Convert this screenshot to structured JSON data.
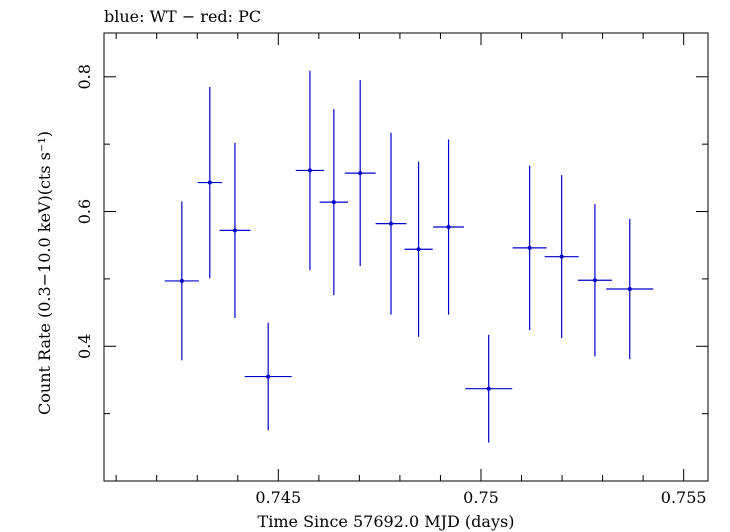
{
  "chart_data": {
    "type": "scatter",
    "title": "blue: WT − red: PC",
    "xlabel": "Time Since 57692.0 MJD (days)",
    "ylabel": "Count Rate (0.3−10.0 keV)(cts s⁻¹)",
    "xlim": [
      0.7407,
      0.7556
    ],
    "ylim": [
      0.2,
      0.865
    ],
    "xticks": [
      0.745,
      0.75,
      0.755
    ],
    "xtick_labels": [
      "0.745",
      "0.75",
      "0.755"
    ],
    "yticks": [
      0.4,
      0.6,
      0.8
    ],
    "ytick_labels": [
      "0.4",
      "0.6",
      "0.8"
    ],
    "series": [
      {
        "name": "WT",
        "color": "#0000cc",
        "points": [
          {
            "x": 0.74262,
            "y": 0.497,
            "xerr": 0.00042,
            "yerr": 0.118
          },
          {
            "x": 0.74331,
            "y": 0.643,
            "xerr": 0.0003,
            "yerr": 0.142
          },
          {
            "x": 0.74393,
            "y": 0.572,
            "xerr": 0.00038,
            "yerr": 0.13
          },
          {
            "x": 0.74475,
            "y": 0.355,
            "xerr": 0.00058,
            "yerr": 0.08
          },
          {
            "x": 0.74578,
            "y": 0.661,
            "xerr": 0.00035,
            "yerr": 0.148
          },
          {
            "x": 0.74637,
            "y": 0.614,
            "xerr": 0.00035,
            "yerr": 0.138
          },
          {
            "x": 0.74702,
            "y": 0.657,
            "xerr": 0.00038,
            "yerr": 0.138
          },
          {
            "x": 0.74778,
            "y": 0.582,
            "xerr": 0.00038,
            "yerr": 0.135
          },
          {
            "x": 0.74846,
            "y": 0.544,
            "xerr": 0.00035,
            "yerr": 0.13
          },
          {
            "x": 0.7492,
            "y": 0.577,
            "xerr": 0.00038,
            "yerr": 0.13
          },
          {
            "x": 0.75019,
            "y": 0.337,
            "xerr": 0.00058,
            "yerr": 0.08
          },
          {
            "x": 0.7512,
            "y": 0.546,
            "xerr": 0.00042,
            "yerr": 0.122
          },
          {
            "x": 0.75199,
            "y": 0.533,
            "xerr": 0.00042,
            "yerr": 0.121
          },
          {
            "x": 0.75281,
            "y": 0.498,
            "xerr": 0.00042,
            "yerr": 0.113
          },
          {
            "x": 0.75367,
            "y": 0.485,
            "xerr": 0.00058,
            "yerr": 0.104
          }
        ]
      }
    ]
  }
}
